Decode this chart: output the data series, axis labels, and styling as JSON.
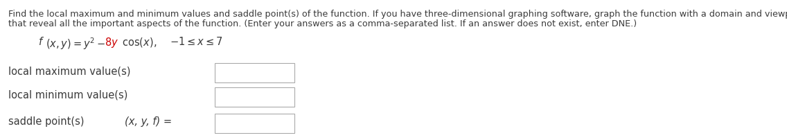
{
  "background_color": "#ffffff",
  "para_line1": "Find the local maximum and minimum values and saddle point(s) of the function. If you have three-dimensional graphing software, graph the function with a domain and viewpoint",
  "para_line2": "that reveal all the important aspects of the function. (Enter your answers as a comma-separated list. If an answer does not exist, enter DNE.)",
  "text_color": "#3a3a3a",
  "red_color": "#cc0000",
  "box_edge_color": "#aaaaaa",
  "box_fill_color": "#ffffff",
  "font_size_para": 9.2,
  "font_size_func": 10.5,
  "font_size_labels": 10.5,
  "row1_label": "local maximum value(s)",
  "row2_label": "local minimum value(s)",
  "row3_label": "saddle point(s)",
  "row3_prefix": "(x, y, f) ="
}
